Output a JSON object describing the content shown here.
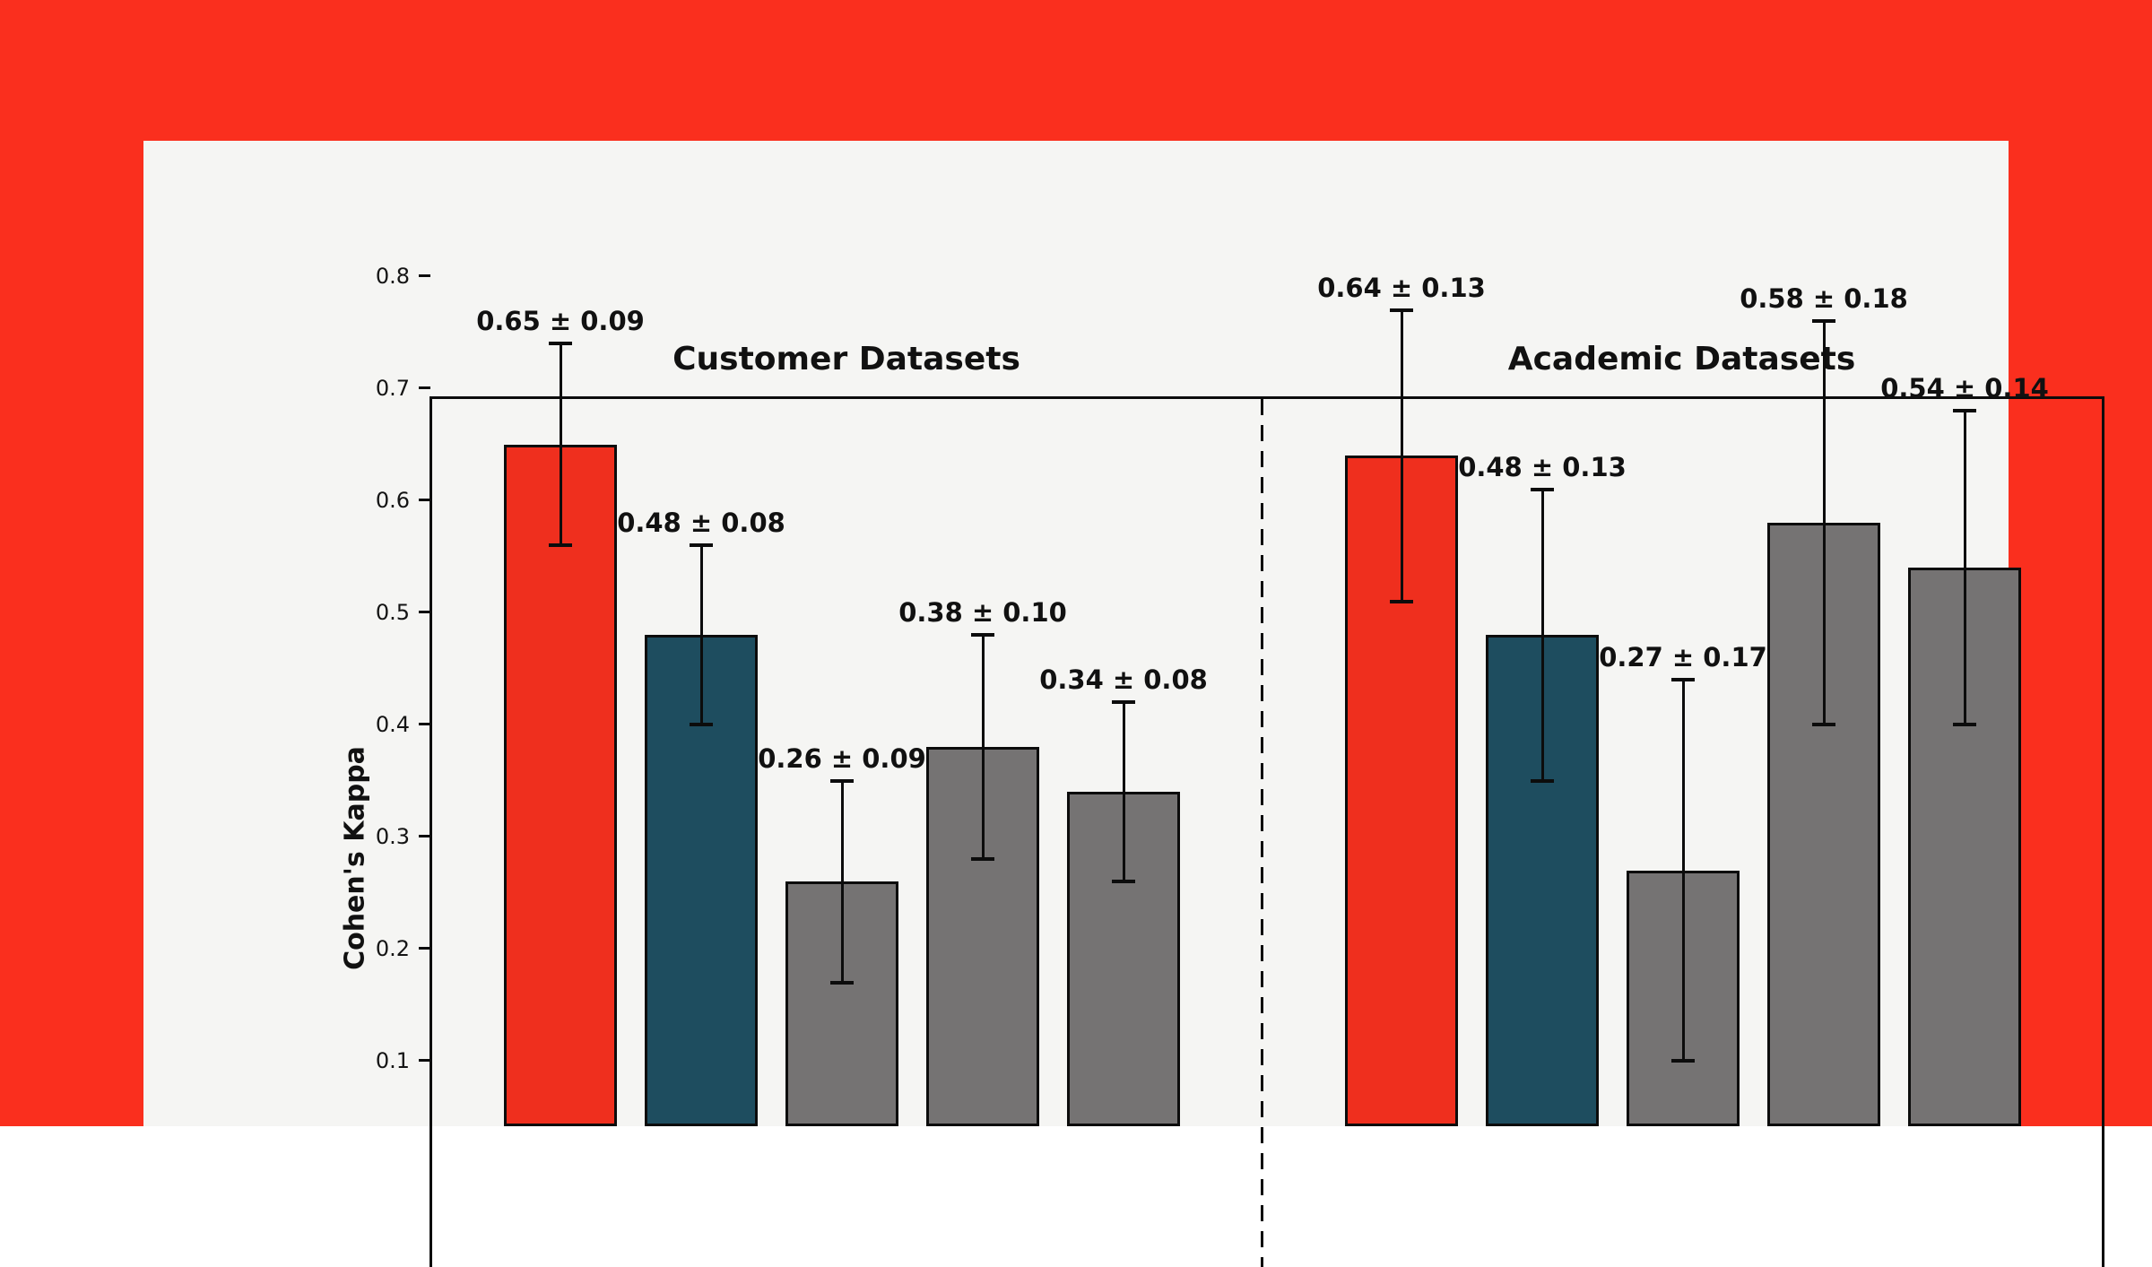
{
  "page": {
    "background_color": "#fa2f1e",
    "panel_color": "#f5f5f3"
  },
  "chart_data": {
    "type": "bar",
    "ylabel": "Cohen's Kappa",
    "grid": false,
    "legend": null,
    "ylim_visible": [
      0.04,
      0.82
    ],
    "yticks": [
      {
        "value": 0.8,
        "label": "0.8"
      },
      {
        "value": 0.7,
        "label": "0.7"
      },
      {
        "value": 0.6,
        "label": "0.6"
      },
      {
        "value": 0.5,
        "label": "0.5"
      },
      {
        "value": 0.4,
        "label": "0.4"
      },
      {
        "value": 0.3,
        "label": "0.3"
      },
      {
        "value": 0.2,
        "label": "0.2"
      },
      {
        "value": 0.1,
        "label": "0.1"
      }
    ],
    "palette": {
      "red": "#ef2f1e",
      "teal": "#1e4d5f",
      "gray": "#757373",
      "edge": "#0c0c0c"
    },
    "groups": [
      {
        "title": "Customer Datasets",
        "bars": [
          {
            "value": 0.65,
            "error": 0.09,
            "label": "0.65 ± 0.09",
            "color": "red"
          },
          {
            "value": 0.48,
            "error": 0.08,
            "label": "0.48 ± 0.08",
            "color": "teal"
          },
          {
            "value": 0.26,
            "error": 0.09,
            "label": "0.26 ± 0.09",
            "color": "gray"
          },
          {
            "value": 0.38,
            "error": 0.1,
            "label": "0.38 ± 0.10",
            "color": "gray"
          },
          {
            "value": 0.34,
            "error": 0.08,
            "label": "0.34 ± 0.08",
            "color": "gray"
          }
        ]
      },
      {
        "title": "Academic Datasets",
        "bars": [
          {
            "value": 0.64,
            "error": 0.13,
            "label": "0.64 ± 0.13",
            "color": "red"
          },
          {
            "value": 0.48,
            "error": 0.13,
            "label": "0.48 ± 0.13",
            "color": "teal"
          },
          {
            "value": 0.27,
            "error": 0.17,
            "label": "0.27 ± 0.17",
            "color": "gray"
          },
          {
            "value": 0.58,
            "error": 0.18,
            "label": "0.58 ± 0.18",
            "color": "gray"
          },
          {
            "value": 0.54,
            "error": 0.14,
            "label": "0.54 ± 0.14",
            "color": "gray"
          }
        ]
      }
    ]
  }
}
